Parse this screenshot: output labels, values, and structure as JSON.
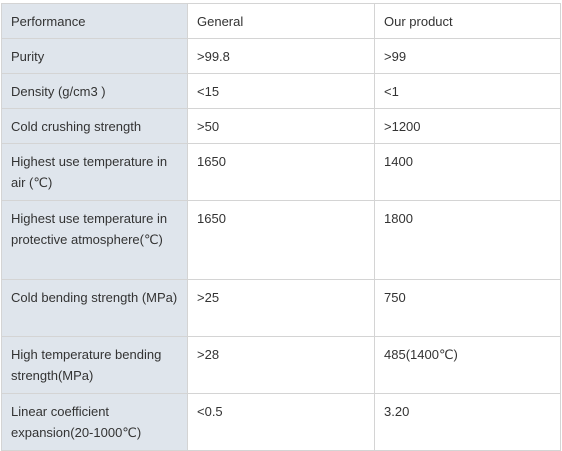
{
  "table": {
    "header": [
      "Performance",
      "General",
      "Our product"
    ],
    "rows": [
      [
        "Purity",
        ">99.8",
        ">99"
      ],
      [
        "Density (g/cm3 )",
        "<15",
        "<1"
      ],
      [
        "Cold crushing strength",
        ">50",
        ">1200"
      ],
      [
        "Highest use temperature in air (℃)",
        "1650",
        "1400"
      ],
      [
        "Highest use temperature in protective atmosphere(℃)",
        "1650",
        "1800"
      ],
      [
        "Cold bending strength (MPa)",
        ">25",
        "750"
      ],
      [
        "High temperature bending strength(MPa)",
        ">28",
        "485(1400℃)"
      ],
      [
        "Linear coefficient expansion(20-1000℃)",
        "<0.5",
        "3.20"
      ]
    ]
  }
}
